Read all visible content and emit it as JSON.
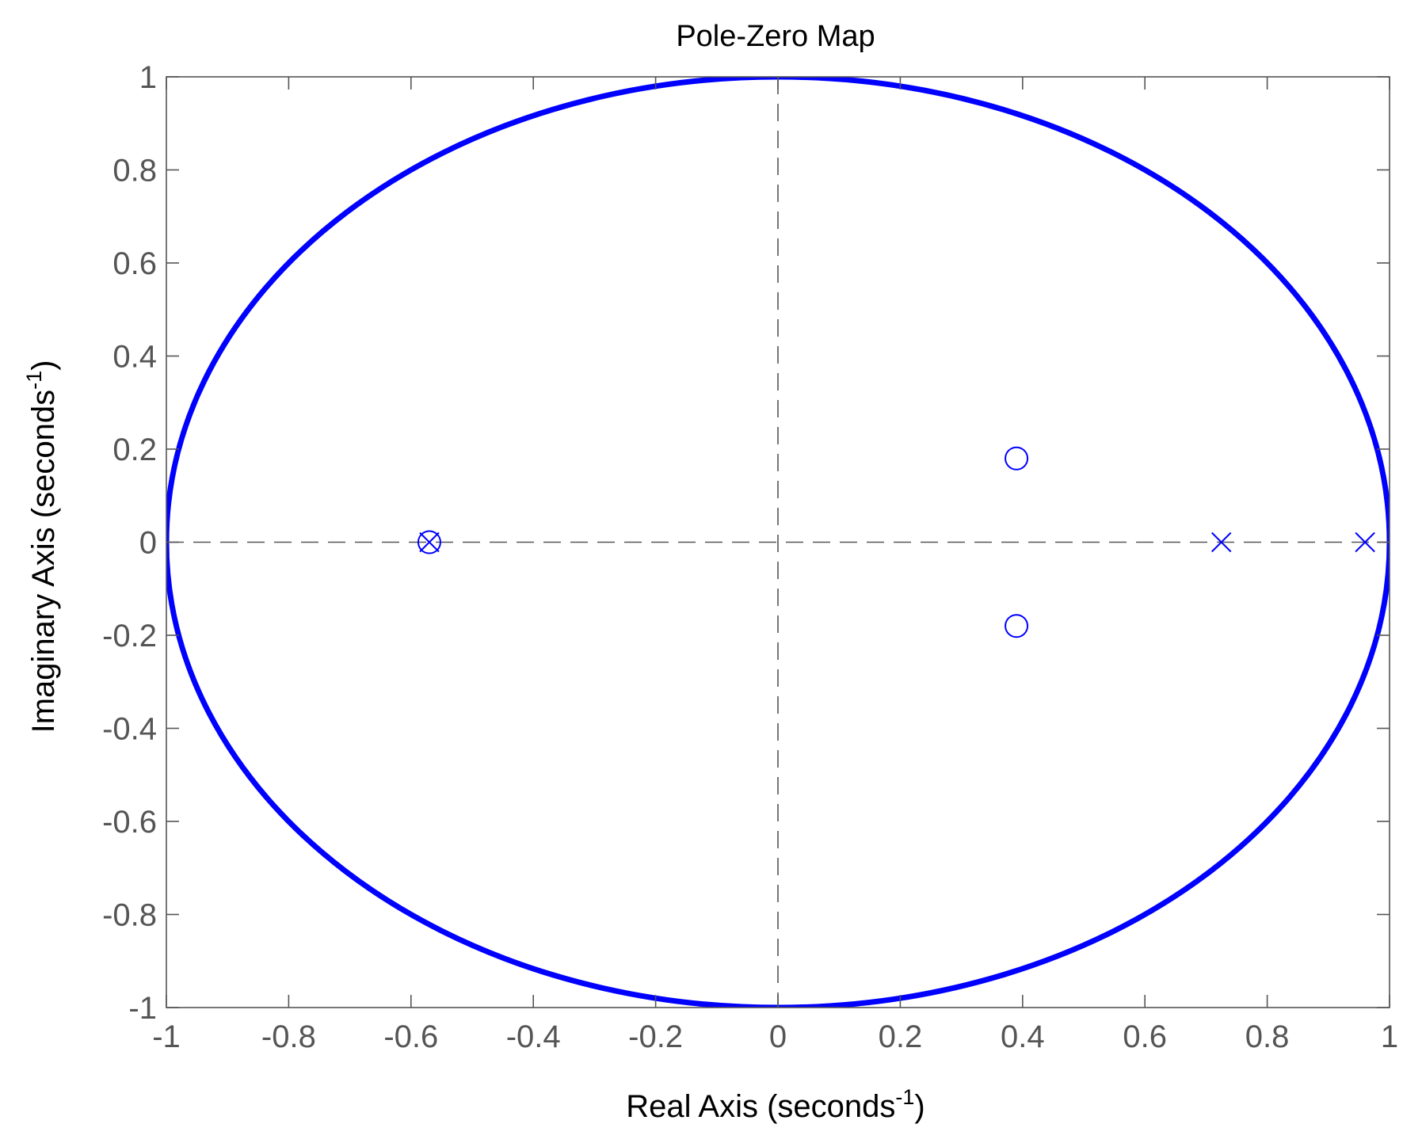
{
  "chart_data": {
    "type": "scatter",
    "title": "Pole-Zero Map",
    "xlabel": {
      "base": "Real Axis (seconds",
      "exponent": "-1",
      "close": ")"
    },
    "ylabel": {
      "base": "Imaginary Axis (seconds",
      "exponent": "-1",
      "close": ")"
    },
    "xlim": [
      -1,
      1
    ],
    "ylim": [
      -1,
      1
    ],
    "xticks": [
      -1,
      -0.8,
      -0.6,
      -0.4,
      -0.2,
      0,
      0.2,
      0.4,
      0.6,
      0.8,
      1
    ],
    "yticks": [
      -1,
      -0.8,
      -0.6,
      -0.4,
      -0.2,
      0,
      0.2,
      0.4,
      0.6,
      0.8,
      1
    ],
    "xtick_labels": [
      "-1",
      "-0.8",
      "-0.6",
      "-0.4",
      "-0.2",
      "0",
      "0.2",
      "0.4",
      "0.6",
      "0.8",
      "1"
    ],
    "ytick_labels": [
      "-1",
      "-0.8",
      "-0.6",
      "-0.4",
      "-0.2",
      "0",
      "0.2",
      "0.4",
      "0.6",
      "0.8",
      "1"
    ],
    "grid": false,
    "unit_circle": {
      "radius": 1,
      "center": [
        0,
        0
      ]
    },
    "series": [
      {
        "marker": "x",
        "points": [
          {
            "x": -0.57,
            "y": 0
          },
          {
            "x": 0.725,
            "y": 0
          },
          {
            "x": 0.96,
            "y": 0
          }
        ]
      },
      {
        "marker": "o",
        "points": [
          {
            "x": -0.57,
            "y": 0
          },
          {
            "x": 0.39,
            "y": 0.18
          },
          {
            "x": 0.39,
            "y": -0.18
          }
        ]
      }
    ],
    "colors": {
      "marker": "#0000ff",
      "circle": "#0000ff",
      "axes": "#555555",
      "dash": "#555555"
    }
  }
}
